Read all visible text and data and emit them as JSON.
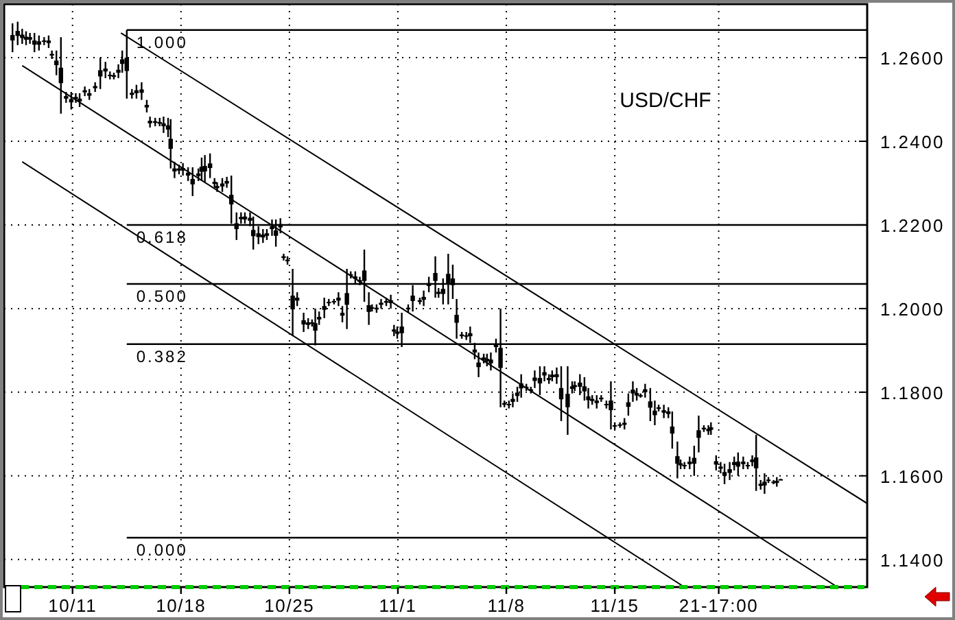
{
  "chart_data": {
    "type": "candlestick",
    "title": "USD/CHF",
    "grid": true,
    "xlim": [
      "--10-06T14:00",
      "--12-01T07:00"
    ],
    "ylim": [
      1.1334,
      1.2728
    ],
    "xticks": [
      {
        "value": "--10-11",
        "label": "10/11"
      },
      {
        "value": "--10-18",
        "label": "10/18"
      },
      {
        "value": "--10-25",
        "label": "10/25"
      },
      {
        "value": "--11-01",
        "label": "11/1"
      },
      {
        "value": "--11-08",
        "label": "11/8"
      },
      {
        "value": "--11-15",
        "label": "11/15"
      },
      {
        "value": "--11-21T17:00",
        "label": "21-17:00"
      }
    ],
    "yticks": [
      {
        "value": 1.14,
        "label": "1.1400"
      },
      {
        "value": 1.16,
        "label": "1.1600"
      },
      {
        "value": 1.18,
        "label": "1.1800"
      },
      {
        "value": 1.2,
        "label": "1.2000"
      },
      {
        "value": 1.22,
        "label": "1.2200"
      },
      {
        "value": 1.24,
        "label": "1.2400"
      },
      {
        "value": 1.26,
        "label": "1.2600"
      }
    ],
    "ref_lines": [
      {
        "axis": "y",
        "value": 1.2666,
        "color": "#000000"
      },
      {
        "axis": "y",
        "value": 1.22,
        "color": "#000000"
      },
      {
        "axis": "y",
        "value": 1.2059,
        "color": "#000000"
      },
      {
        "axis": "y",
        "value": 1.1915,
        "color": "#000000"
      },
      {
        "axis": "y",
        "value": 1.1452,
        "color": "#000000"
      }
    ],
    "annotations": [
      {
        "text": "1.000",
        "x": "--10-14T12:00",
        "y": 1.2666
      },
      {
        "text": "0.618",
        "x": "--10-14T12:00",
        "y": 1.22
      },
      {
        "text": "0.500",
        "x": "--10-14T12:00",
        "y": 1.2059
      },
      {
        "text": "0.382",
        "x": "--10-14T12:00",
        "y": 1.1915
      },
      {
        "text": "0.000",
        "x": "--10-14T12:00",
        "y": 1.1452
      }
    ],
    "series": [
      {
        "color": "#000000",
        "x": [
          "--10-07T03:00",
          "--10-07T11:00",
          "--10-07T18:00",
          "--10-08T00:00",
          "--10-08T06:00",
          "--10-08T13:00",
          "--10-08T20:00",
          "--10-09T04:00",
          "--10-09T11:00",
          "--10-09T16:00",
          "--10-09T23:00",
          "--10-10T06:00",
          "--10-10T14:00",
          "--10-10T22:00",
          "--10-11T05:00",
          "--10-11T11:00",
          "--10-11T19:00",
          "--10-12T02:00",
          "--10-12T11:00",
          "--10-12T19:00",
          "--10-13T03:00",
          "--10-13T10:00",
          "--10-13T16:00",
          "--10-13T23:00",
          "--10-14T05:00",
          "--10-14T12:00",
          "--10-14T20:00",
          "--10-15T03:00",
          "--10-15T11:00",
          "--10-15T19:00",
          "--10-16T00:00",
          "--10-16T08:00",
          "--10-16T15:00",
          "--10-16T21:00",
          "--10-17T04:00",
          "--10-17T08:00",
          "--10-17T14:00",
          "--10-17T21:00",
          "--10-18T03:00",
          "--10-18T11:00",
          "--10-18T18:00",
          "--10-19T03:00",
          "--10-19T08:00",
          "--10-19T13:00",
          "--10-19T21:00",
          "--10-20T04:00",
          "--10-20T08:00",
          "--10-20T16:00",
          "--10-20T23:00",
          "--10-21T06:00",
          "--10-21T14:00",
          "--10-21T21:00",
          "--10-22T03:00",
          "--10-22T11:00",
          "--10-22T16:00",
          "--10-23T00:00",
          "--10-23T07:00",
          "--10-23T13:00",
          "--10-23T21:00",
          "--10-24T03:00",
          "--10-24T10:00",
          "--10-24T15:00",
          "--10-24T21:00",
          "--10-25T05:00",
          "--10-25T12:00",
          "--10-25T22:00",
          "--10-26T05:00",
          "--10-26T11:00",
          "--10-26T16:00",
          "--10-26T22:00",
          "--10-27T06:00",
          "--10-27T13:00",
          "--10-27T21:00",
          "--10-28T04:00",
          "--10-28T10:00",
          "--10-28T17:00",
          "--10-28T23:00",
          "--10-29T06:00",
          "--10-29T13:00",
          "--10-29T20:00",
          "--10-30T03:00",
          "--10-30T08:00",
          "--10-30T15:00",
          "--10-30T22:00",
          "--10-31T06:00",
          "--10-31T13:00",
          "--10-31T18:00",
          "--10-31T23:00",
          "--11-01T06:00",
          "--11-01T16:00",
          "--11-01T23:00",
          "--11-02T10:00",
          "--11-02T16:00",
          "--11-03T00:00",
          "--11-03T10:00",
          "--11-03T15:00",
          "--11-03T22:00",
          "--11-04T06:00",
          "--11-04T13:00",
          "--11-04T19:00",
          "--11-05T03:00",
          "--11-05T10:00",
          "--11-05T16:00",
          "--11-05T23:00",
          "--11-06T05:00",
          "--11-06T13:00",
          "--11-06T18:00",
          "--11-07T00:00",
          "--11-07T08:00",
          "--11-07T15:00",
          "--11-07T21:00",
          "--11-08T04:00",
          "--11-08T10:00",
          "--11-08T17:00",
          "--11-08T23:00",
          "--11-09T07:00",
          "--11-09T14:00",
          "--11-09T20:00",
          "--11-10T04:00",
          "--11-10T11:00",
          "--11-10T18:00",
          "--11-10T23:00",
          "--11-11T06:00",
          "--11-11T13:00",
          "--11-11T23:00",
          "--11-12T06:00",
          "--11-12T10:00",
          "--11-12T18:00",
          "--11-13T01:00",
          "--11-13T07:00",
          "--11-13T13:00",
          "--11-13T20:00",
          "--11-14T03:00",
          "--11-14T11:00",
          "--11-14T18:00",
          "--11-15T00:00",
          "--11-15T08:00",
          "--11-15T15:00",
          "--11-15T21:00",
          "--11-16T04:00",
          "--11-16T10:00",
          "--11-16T16:00",
          "--11-16T23:00",
          "--11-17T07:00",
          "--11-17T14:00",
          "--11-17T20:00",
          "--11-18T04:00",
          "--11-18T11:00",
          "--11-18T17:00",
          "--11-19T01:00",
          "--11-19T06:00",
          "--11-19T12:00",
          "--11-19T20:00",
          "--11-20T03:00",
          "--11-20T10:00",
          "--11-20T18:00",
          "--11-21T01:00",
          "--11-21T05:00",
          "--11-21T13:00",
          "--11-21T20:00",
          "--11-22T02:00",
          "--11-22T10:00",
          "--11-22T17:00",
          "--11-22T23:00",
          "--11-23T07:00",
          "--11-23T14:00",
          "--11-23T21:00",
          "--11-24T03:00",
          "--11-24T10:00",
          "--11-24T16:00",
          "--11-24T22:00",
          "--11-25T06:00",
          "--11-25T11:00",
          "--11-25T17:00"
        ],
        "ohlc": [
          [
            1.2654,
            1.2682,
            1.2613,
            1.2641
          ],
          [
            1.2664,
            1.2686,
            1.263,
            1.2652
          ],
          [
            1.2655,
            1.2669,
            1.2633,
            1.2647
          ],
          [
            1.265,
            1.2663,
            1.263,
            1.2643
          ],
          [
            1.2649,
            1.2659,
            1.2633,
            1.2643
          ],
          [
            1.2641,
            1.2659,
            1.2613,
            1.2631
          ],
          [
            1.2639,
            1.2653,
            1.2617,
            1.2631
          ],
          [
            1.2641,
            1.2649,
            1.263,
            1.2638
          ],
          [
            1.2641,
            1.2653,
            1.2623,
            1.2635
          ],
          [
            1.2609,
            1.2617,
            1.2597,
            1.2605
          ],
          [
            1.2593,
            1.2617,
            1.2558,
            1.2582
          ],
          [
            1.2576,
            1.2649,
            1.2466,
            1.2539
          ],
          [
            1.2508,
            1.2518,
            1.2492,
            1.2502
          ],
          [
            1.2501,
            1.2518,
            1.2476,
            1.2493
          ],
          [
            1.2506,
            1.2515,
            1.2492,
            1.2501
          ],
          [
            1.2502,
            1.2515,
            1.2482,
            1.2495
          ],
          [
            1.2522,
            1.2531,
            1.2508,
            1.2517
          ],
          [
            1.2515,
            1.2525,
            1.2499,
            1.2509
          ],
          [
            1.2532,
            1.2541,
            1.2518,
            1.2527
          ],
          [
            1.257,
            1.26,
            1.2525,
            1.2555
          ],
          [
            1.2574,
            1.259,
            1.2551,
            1.2567
          ],
          [
            1.2559,
            1.2567,
            1.2548,
            1.2556
          ],
          [
            1.2558,
            1.2564,
            1.2548,
            1.2554
          ],
          [
            1.2571,
            1.2584,
            1.2551,
            1.2564
          ],
          [
            1.2596,
            1.2617,
            1.2564,
            1.2585
          ],
          [
            1.26,
            1.2666,
            1.2502,
            1.2568
          ],
          [
            1.2516,
            1.2525,
            1.2502,
            1.2511
          ],
          [
            1.2522,
            1.2535,
            1.2502,
            1.2515
          ],
          [
            1.2524,
            1.2541,
            1.2499,
            1.2516
          ],
          [
            1.2487,
            1.2499,
            1.2469,
            1.2481
          ],
          [
            1.2449,
            1.2459,
            1.2433,
            1.2443
          ],
          [
            1.2448,
            1.2456,
            1.2436,
            1.2444
          ],
          [
            1.2446,
            1.2456,
            1.2436,
            1.2442
          ],
          [
            1.2443,
            1.2459,
            1.242,
            1.2436
          ],
          [
            1.2438,
            1.2456,
            1.241,
            1.2428
          ],
          [
            1.2406,
            1.2453,
            1.2335,
            1.2382
          ],
          [
            1.2335,
            1.2351,
            1.2312,
            1.2328
          ],
          [
            1.2335,
            1.2344,
            1.2321,
            1.233
          ],
          [
            1.2336,
            1.2348,
            1.2318,
            1.233
          ],
          [
            1.2325,
            1.2338,
            1.2305,
            1.2318
          ],
          [
            1.231,
            1.2338,
            1.2269,
            1.2297
          ],
          [
            1.2323,
            1.2335,
            1.2305,
            1.2317
          ],
          [
            1.2339,
            1.2361,
            1.2305,
            1.2327
          ],
          [
            1.2341,
            1.2367,
            1.2302,
            1.2328
          ],
          [
            1.2347,
            1.2371,
            1.2312,
            1.2336
          ],
          [
            1.2303,
            1.2312,
            1.2289,
            1.2298
          ],
          [
            1.2293,
            1.2302,
            1.2279,
            1.2288
          ],
          [
            1.2299,
            1.2312,
            1.2279,
            1.2292
          ],
          [
            1.2305,
            1.2315,
            1.2289,
            1.2299
          ],
          [
            1.2272,
            1.2318,
            1.2203,
            1.2249
          ],
          [
            1.2204,
            1.223,
            1.2164,
            1.219
          ],
          [
            1.2219,
            1.223,
            1.2203,
            1.2214
          ],
          [
            1.222,
            1.223,
            1.2203,
            1.2213
          ],
          [
            1.2217,
            1.223,
            1.2197,
            1.221
          ],
          [
            1.2188,
            1.222,
            1.2141,
            1.2173
          ],
          [
            1.218,
            1.2197,
            1.2154,
            1.2171
          ],
          [
            1.2177,
            1.219,
            1.2157,
            1.217
          ],
          [
            1.218,
            1.219,
            1.2164,
            1.2174
          ],
          [
            1.2197,
            1.2213,
            1.2174,
            1.219
          ],
          [
            1.2187,
            1.2213,
            1.2148,
            1.2174
          ],
          [
            1.2202,
            1.2216,
            1.218,
            1.2194
          ],
          [
            1.2125,
            1.2131,
            1.2115,
            1.2121
          ],
          [
            1.2117,
            1.2125,
            1.2105,
            1.2113
          ],
          [
            1.2031,
            1.2095,
            1.1934,
            1.1998
          ],
          [
            1.2026,
            1.2039,
            1.2006,
            1.2019
          ],
          [
            1.1972,
            1.199,
            1.1944,
            1.1962
          ],
          [
            1.1967,
            1.1977,
            1.1951,
            1.1961
          ],
          [
            1.1967,
            1.1974,
            1.1957,
            1.1964
          ],
          [
            1.1965,
            1.2,
            1.1912,
            1.1947
          ],
          [
            1.198,
            1.1993,
            1.1961,
            1.1974
          ],
          [
            1.2006,
            1.2026,
            1.1977,
            1.1997
          ],
          [
            1.2016,
            1.2023,
            1.2006,
            1.2013
          ],
          [
            1.2018,
            1.2023,
            1.201,
            1.2015
          ],
          [
            1.2026,
            1.2039,
            1.2006,
            1.2019
          ],
          [
            1.199,
            1.2006,
            1.1967,
            1.1983
          ],
          [
            1.2037,
            1.2095,
            1.1951,
            1.2009
          ],
          [
            1.2082,
            1.2089,
            1.2072,
            1.2079
          ],
          [
            1.2077,
            1.2089,
            1.2059,
            1.2071
          ],
          [
            1.2068,
            1.2076,
            1.2056,
            1.2064
          ],
          [
            1.2091,
            1.2141,
            1.2016,
            1.2066
          ],
          [
            1.2008,
            1.2039,
            1.1961,
            1.1992
          ],
          [
            1.2003,
            1.201,
            1.1993,
            1.2
          ],
          [
            1.2002,
            1.201,
            1.199,
            1.1998
          ],
          [
            1.2014,
            1.2023,
            1.2,
            1.2009
          ],
          [
            1.2018,
            1.2026,
            1.2006,
            1.2014
          ],
          [
            1.202,
            1.2033,
            1.2,
            1.2013
          ],
          [
            1.195,
            1.1961,
            1.1934,
            1.1945
          ],
          [
            1.1945,
            1.1957,
            1.1928,
            1.194
          ],
          [
            1.1957,
            1.199,
            1.1908,
            1.1941
          ],
          [
            1.2002,
            1.201,
            1.199,
            1.1998
          ],
          [
            1.2031,
            1.2056,
            1.1993,
            1.2018
          ],
          [
            1.202,
            1.2026,
            1.201,
            1.2016
          ],
          [
            1.2028,
            1.2043,
            1.2006,
            1.2021
          ],
          [
            1.2061,
            1.2076,
            1.2039,
            1.2054
          ],
          [
            1.2085,
            1.2125,
            1.2026,
            1.2066
          ],
          [
            1.204,
            1.2049,
            1.2026,
            1.2035
          ],
          [
            1.2047,
            1.2072,
            1.201,
            1.2035
          ],
          [
            1.2083,
            1.2131,
            1.201,
            1.2058
          ],
          [
            1.2072,
            1.2105,
            1.2023,
            1.2056
          ],
          [
            1.1985,
            1.2023,
            1.1928,
            1.1966
          ],
          [
            1.1938,
            1.1944,
            1.1928,
            1.1934
          ],
          [
            1.1936,
            1.1944,
            1.1925,
            1.1933
          ],
          [
            1.1941,
            1.1957,
            1.1918,
            1.1934
          ],
          [
            1.1902,
            1.1918,
            1.1879,
            1.1895
          ],
          [
            1.1871,
            1.1895,
            1.1836,
            1.186
          ],
          [
            1.1883,
            1.1892,
            1.1869,
            1.1878
          ],
          [
            1.188,
            1.1892,
            1.1862,
            1.1874
          ],
          [
            1.1878,
            1.1895,
            1.1852,
            1.1869
          ],
          [
            1.1915,
            1.1928,
            1.1895,
            1.1908
          ],
          [
            1.1906,
            1.2,
            1.1764,
            1.1858
          ],
          [
            1.1774,
            1.178,
            1.1764,
            1.177
          ],
          [
            1.1772,
            1.178,
            1.1761,
            1.1769
          ],
          [
            1.1784,
            1.1797,
            1.1764,
            1.1777
          ],
          [
            1.1799,
            1.1813,
            1.1777,
            1.1791
          ],
          [
            1.1821,
            1.1843,
            1.1787,
            1.1809
          ],
          [
            1.1813,
            1.182,
            1.1803,
            1.181
          ],
          [
            1.1807,
            1.1813,
            1.1797,
            1.1803
          ],
          [
            1.1835,
            1.1852,
            1.181,
            1.1827
          ],
          [
            1.1834,
            1.1862,
            1.1793,
            1.1821
          ],
          [
            1.1848,
            1.1862,
            1.1826,
            1.184
          ],
          [
            1.1834,
            1.1843,
            1.182,
            1.1829
          ],
          [
            1.1842,
            1.1852,
            1.1826,
            1.1836
          ],
          [
            1.1843,
            1.1859,
            1.182,
            1.1836
          ],
          [
            1.181,
            1.1862,
            1.1731,
            1.1783
          ],
          [
            1.1796,
            1.1862,
            1.1698,
            1.1764
          ],
          [
            1.1814,
            1.1826,
            1.1797,
            1.1808
          ],
          [
            1.1817,
            1.1826,
            1.1803,
            1.1812
          ],
          [
            1.1823,
            1.1843,
            1.1793,
            1.1813
          ],
          [
            1.1814,
            1.1836,
            1.178,
            1.1802
          ],
          [
            1.179,
            1.181,
            1.1761,
            1.1781
          ],
          [
            1.1784,
            1.1793,
            1.177,
            1.1779
          ],
          [
            1.178,
            1.1793,
            1.1761,
            1.1774
          ],
          [
            1.1787,
            1.1793,
            1.1777,
            1.1783
          ],
          [
            1.1772,
            1.178,
            1.1761,
            1.1769
          ],
          [
            1.178,
            1.1826,
            1.1711,
            1.1757
          ],
          [
            1.1721,
            1.1728,
            1.1711,
            1.1718
          ],
          [
            1.1723,
            1.1728,
            1.1715,
            1.172
          ],
          [
            1.1727,
            1.1738,
            1.1711,
            1.1722
          ],
          [
            1.1776,
            1.1797,
            1.1744,
            1.1765
          ],
          [
            1.1806,
            1.1826,
            1.1777,
            1.1797
          ],
          [
            1.1798,
            1.181,
            1.178,
            1.1792
          ],
          [
            1.1793,
            1.1797,
            1.1787,
            1.1791
          ],
          [
            1.1807,
            1.182,
            1.1787,
            1.18
          ],
          [
            1.1778,
            1.181,
            1.1731,
            1.1763
          ],
          [
            1.1756,
            1.178,
            1.1721,
            1.1745
          ],
          [
            1.1764,
            1.177,
            1.1754,
            1.176
          ],
          [
            1.1757,
            1.177,
            1.1738,
            1.1751
          ],
          [
            1.1754,
            1.1764,
            1.1738,
            1.1748
          ],
          [
            1.1718,
            1.1754,
            1.1665,
            1.1701
          ],
          [
            1.1647,
            1.1682,
            1.1594,
            1.1629
          ],
          [
            1.163,
            1.1639,
            1.1616,
            1.1625
          ],
          [
            1.1626,
            1.1633,
            1.1616,
            1.1623
          ],
          [
            1.1634,
            1.1646,
            1.1616,
            1.1628
          ],
          [
            1.1643,
            1.1672,
            1.16,
            1.1629
          ],
          [
            1.1709,
            1.1744,
            1.1656,
            1.1691
          ],
          [
            1.1715,
            1.1721,
            1.1705,
            1.1711
          ],
          [
            1.1712,
            1.1721,
            1.1698,
            1.1707
          ],
          [
            1.1716,
            1.1728,
            1.1698,
            1.171
          ],
          [
            1.1635,
            1.1649,
            1.1613,
            1.1627
          ],
          [
            1.1622,
            1.1633,
            1.1606,
            1.1617
          ],
          [
            1.1609,
            1.1629,
            1.158,
            1.16
          ],
          [
            1.1616,
            1.1633,
            1.159,
            1.1607
          ],
          [
            1.1633,
            1.1646,
            1.1613,
            1.1626
          ],
          [
            1.1634,
            1.1656,
            1.16,
            1.1622
          ],
          [
            1.1634,
            1.1646,
            1.1616,
            1.1628
          ],
          [
            1.1626,
            1.1633,
            1.1616,
            1.1623
          ],
          [
            1.1639,
            1.1649,
            1.1623,
            1.1633
          ],
          [
            1.1644,
            1.1698,
            1.1564,
            1.1618
          ],
          [
            1.1581,
            1.159,
            1.1567,
            1.1576
          ],
          [
            1.1586,
            1.1606,
            1.1557,
            1.1577
          ],
          [
            1.1591,
            1.1597,
            1.1583,
            1.1589
          ],
          [
            1.1586,
            1.159,
            1.158,
            1.1584
          ],
          [
            1.1588,
            1.1597,
            1.1574,
            1.1583
          ],
          [
            1.1592,
            1.1593,
            1.159,
            1.1591
          ]
        ]
      },
      {
        "type": "line",
        "color": "#000000",
        "x": [
          "--10-14T03:00",
          "--12-01T07:00"
        ],
        "values": [
          1.2659,
          1.1534
        ]
      },
      {
        "type": "line",
        "color": "#000000",
        "x": [
          "--10-07T18:00",
          "--11-29T09:00"
        ],
        "values": [
          1.2581,
          1.1334
        ]
      },
      {
        "type": "line",
        "color": "#000000",
        "x": [
          "--10-07T18:00",
          "--11-19T12:00"
        ],
        "values": [
          1.2351,
          1.1334
        ]
      }
    ]
  }
}
